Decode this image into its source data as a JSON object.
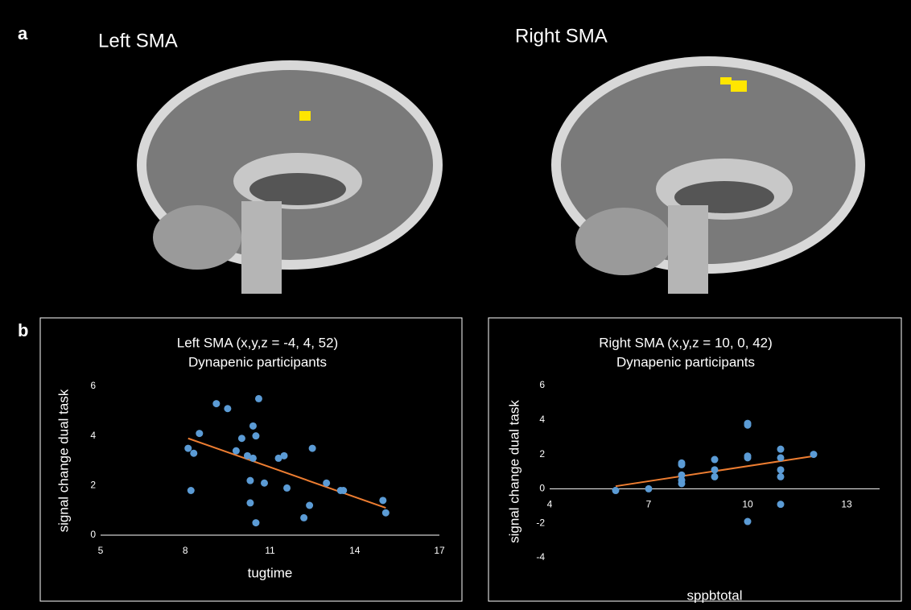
{
  "panel_labels": [
    "a",
    "b"
  ],
  "images": [
    {
      "title": "Left SMA"
    },
    {
      "title": "Right SMA"
    }
  ],
  "chart_data": [
    {
      "type": "scatter",
      "title": "Left SMA (x,y,z = -4, 4, 52)",
      "subtitle": "Dynapenic participants",
      "x_label": "tugtime",
      "y_label": "signal change dual task",
      "xlim": [
        5,
        17
      ],
      "xticks": [
        5,
        8,
        11,
        14,
        17
      ],
      "ylim": [
        0,
        6
      ],
      "yticks": [
        0,
        2,
        4,
        6
      ],
      "color": "#5b9bd5",
      "trend_color": "#ed7d31",
      "x": [
        8.1,
        8.3,
        8.2,
        8.5,
        9.1,
        9.5,
        10.0,
        9.8,
        10.2,
        10.4,
        10.4,
        10.5,
        10.6,
        10.3,
        10.5,
        10.3,
        10.8,
        11.3,
        11.5,
        11.6,
        12.5,
        12.2,
        12.4,
        13.0,
        13.5,
        13.6,
        15.0,
        15.1
      ],
      "values": [
        3.5,
        3.3,
        1.8,
        4.1,
        5.3,
        5.1,
        3.9,
        3.4,
        3.2,
        3.1,
        4.4,
        4.0,
        5.5,
        2.2,
        0.5,
        1.3,
        2.1,
        3.1,
        3.2,
        1.9,
        3.5,
        0.7,
        1.2,
        2.1,
        1.8,
        1.8,
        1.4,
        0.9
      ],
      "trendline": {
        "x": [
          8.1,
          15.1
        ],
        "values": [
          3.9,
          1.1
        ]
      }
    },
    {
      "type": "scatter",
      "title": "Right SMA (x,y,z = 10, 0, 42)",
      "subtitle": "Dynapenic participants",
      "x_label": "sppbtotal",
      "y_label": "signal change dual task",
      "xlim": [
        4,
        14
      ],
      "xticks": [
        4,
        7,
        10,
        13
      ],
      "ylim": [
        -4,
        6
      ],
      "yticks": [
        -4,
        -2,
        0,
        2,
        4,
        6
      ],
      "color": "#5b9bd5",
      "trend_color": "#ed7d31",
      "x": [
        6,
        7,
        8,
        8,
        8,
        8,
        8,
        9,
        9,
        9,
        10,
        10,
        10,
        10,
        10,
        11,
        11,
        11,
        11,
        11,
        12
      ],
      "values": [
        -0.1,
        0,
        1.5,
        1.4,
        0.8,
        0.5,
        0.3,
        1.7,
        1.1,
        0.7,
        3.8,
        3.7,
        1.9,
        1.8,
        -1.9,
        2.3,
        1.8,
        1.1,
        0.7,
        -0.9,
        2.0
      ],
      "trendline": {
        "x": [
          6,
          12
        ],
        "values": [
          0.15,
          1.9
        ]
      }
    }
  ]
}
